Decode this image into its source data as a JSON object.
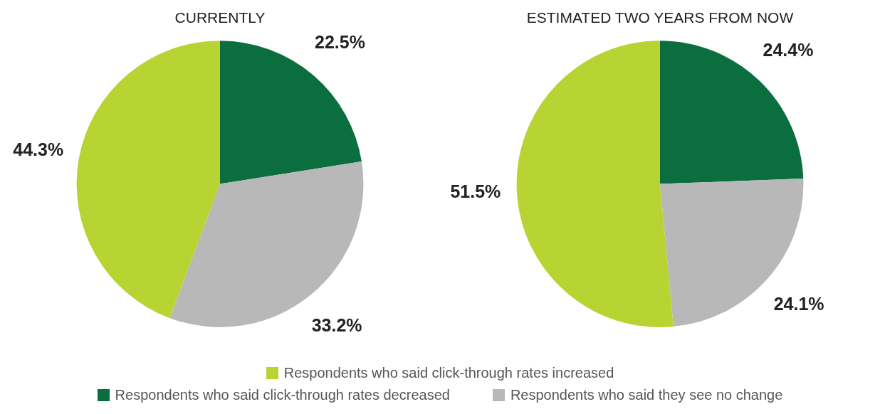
{
  "chart_data": [
    {
      "type": "pie",
      "title": "CURRENTLY",
      "categories": [
        "Respondents who said click-through rates decreased",
        "Respondents who said they see no change",
        "Respondents who said click-through rates increased"
      ],
      "values": [
        22.5,
        33.2,
        44.3
      ],
      "value_labels": [
        "22.5%",
        "33.2%",
        "44.3%"
      ],
      "colors": [
        "#0b6e3f",
        "#b8b8b8",
        "#b8d432"
      ],
      "legend": "bottom"
    },
    {
      "type": "pie",
      "title": "ESTIMATED TWO YEARS FROM NOW",
      "categories": [
        null,
        null,
        null
      ],
      "values": [
        24.4,
        24.1,
        51.5
      ],
      "value_labels": [
        "24.4%",
        "24.1%",
        "51.5%"
      ],
      "colors": [
        "#0b6e3f",
        "#b8b8b8",
        "#b8d432"
      ]
    }
  ]
}
